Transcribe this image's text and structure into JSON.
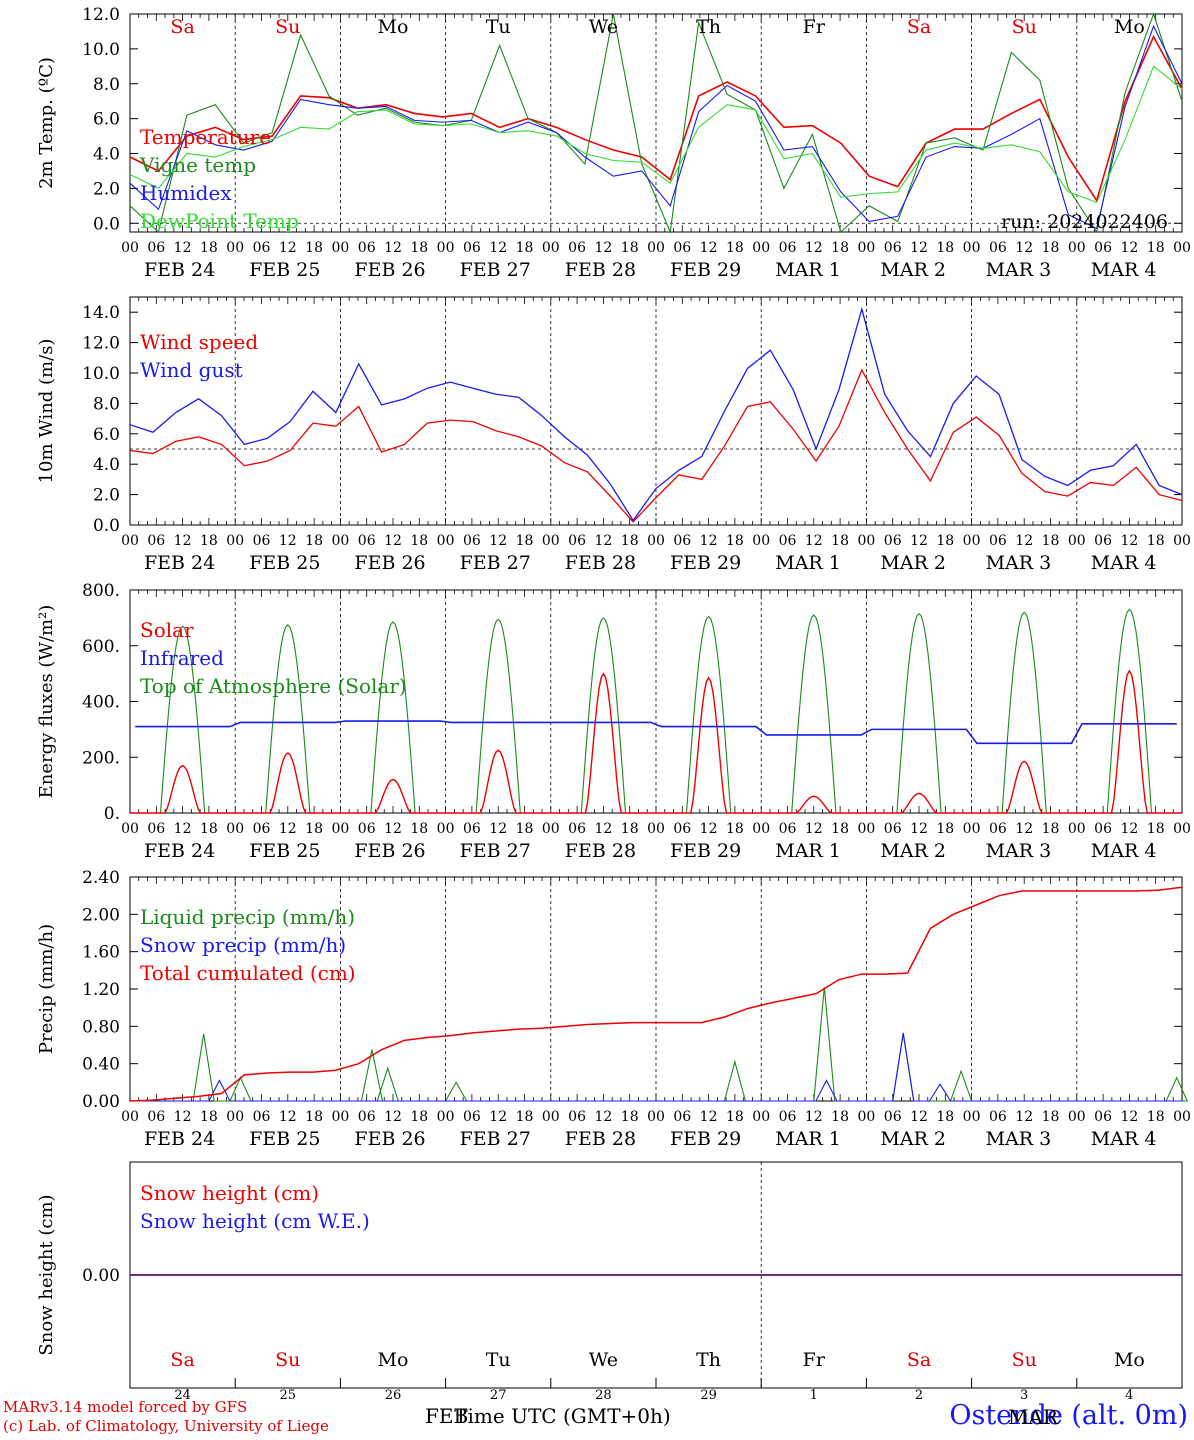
{
  "meta": {
    "run_label": "run: 2024022406",
    "footer_line1": "MARv3.14 model forced by GFS",
    "footer_line2": "(c) Lab. of Climatology, University of Liege",
    "station": "Ostende (alt. 0m)",
    "month_overlap_1": "FEB",
    "month_overlap_2": "MAR",
    "xaxis_label": "Time UTC (GMT+0h)"
  },
  "axis": {
    "hour_ticks": [
      "00",
      "06",
      "12",
      "18"
    ],
    "day_labels": [
      "FEB 24",
      "FEB 25",
      "FEB 26",
      "FEB 27",
      "FEB 28",
      "FEB 29",
      "MAR  1",
      "MAR  2",
      "MAR  3",
      "MAR  4"
    ],
    "weekdays": [
      "Sa",
      "Su",
      "Mo",
      "Tu",
      "We",
      "Th",
      "Fr",
      "Sa",
      "Su",
      "Mo"
    ],
    "weekday_colors": [
      "#e00000",
      "#e00000",
      "#000000",
      "#000000",
      "#000000",
      "#000000",
      "#000000",
      "#e00000",
      "#e00000",
      "#000000"
    ],
    "day_numbers": [
      "24",
      "25",
      "26",
      "27",
      "28",
      "29",
      "1",
      "2",
      "3",
      "4"
    ]
  },
  "colors": {
    "red": "#ee0000",
    "blue": "#1a1aee",
    "dark_green": "#1a8a1a",
    "light_green": "#33dd33",
    "purple": "#7a2a7a"
  },
  "chart_data": [
    {
      "type": "line",
      "ylabel": "2m Temp. (ºC)",
      "ylim": [
        -0.5,
        12.0
      ],
      "yticks": [
        "0.0",
        "2.0",
        "4.0",
        "6.0",
        "8.0",
        "10.0",
        "12.0"
      ],
      "yticks_values": [
        0,
        2,
        4,
        6,
        8,
        10,
        12
      ],
      "x_start": "2024-02-24 00:00",
      "x_step_hours": 6,
      "ref_line": 0,
      "series": [
        {
          "name": "Temperature",
          "color": "#ee0000",
          "values": [
            3.8,
            3.0,
            5.0,
            5.5,
            4.8,
            5.0,
            7.3,
            7.2,
            6.6,
            6.8,
            6.3,
            6.1,
            6.3,
            5.5,
            6.0,
            5.5,
            4.8,
            4.2,
            3.8,
            2.5,
            7.3,
            8.1,
            7.3,
            5.5,
            5.6,
            4.6,
            2.7,
            2.1,
            4.6,
            5.4,
            5.4,
            6.3,
            7.1,
            3.8,
            1.3,
            7.0,
            10.7,
            7.7
          ]
        },
        {
          "name": "Vigne temp",
          "color": "#1a8a1a",
          "values": [
            1.0,
            -0.5,
            6.2,
            6.8,
            4.6,
            5.2,
            10.8,
            7.3,
            6.2,
            6.6,
            5.8,
            5.6,
            5.9,
            10.2,
            6.0,
            5.2,
            3.4,
            12.0,
            3.4,
            -0.5,
            11.5,
            7.4,
            6.5,
            2.0,
            5.1,
            -0.5,
            1.0,
            0.1,
            4.6,
            4.9,
            4.2,
            9.8,
            8.2,
            2.0,
            -0.5,
            7.5,
            12.0,
            7.0
          ]
        },
        {
          "name": "Humidex",
          "color": "#1a1aee",
          "values": [
            2.3,
            0.8,
            5.3,
            4.5,
            4.2,
            4.7,
            7.1,
            6.8,
            6.6,
            6.7,
            5.9,
            5.8,
            5.9,
            5.2,
            5.8,
            5.2,
            3.8,
            2.7,
            3.0,
            1.0,
            6.4,
            7.9,
            7.0,
            4.2,
            4.4,
            1.8,
            0.1,
            0.4,
            3.8,
            4.4,
            4.3,
            5.1,
            6.0,
            0.5,
            -0.3,
            6.7,
            11.3,
            8.0
          ]
        },
        {
          "name": "DewPoint Temp",
          "color": "#33dd33",
          "values": [
            2.8,
            2.0,
            4.0,
            3.8,
            4.4,
            4.8,
            5.5,
            5.4,
            6.4,
            6.5,
            5.7,
            5.6,
            5.7,
            5.2,
            5.3,
            5.0,
            4.0,
            3.6,
            3.5,
            2.3,
            5.5,
            6.8,
            6.5,
            3.7,
            4.0,
            1.5,
            1.7,
            1.8,
            4.2,
            4.6,
            4.3,
            4.5,
            4.1,
            1.8,
            1.2,
            4.8,
            9.0,
            7.7
          ]
        }
      ]
    },
    {
      "type": "line",
      "ylabel": "10m Wind (m/s)",
      "ylim": [
        0,
        15
      ],
      "yticks": [
        "0.0",
        "2.0",
        "4.0",
        "6.0",
        "8.0",
        "10.0",
        "12.0",
        "14.0"
      ],
      "yticks_values": [
        0,
        2,
        4,
        6,
        8,
        10,
        12,
        14
      ],
      "x_start": "2024-02-24 00:00",
      "x_step_hours": 6,
      "ref_line": 5,
      "series": [
        {
          "name": "Wind speed",
          "color": "#ee0000",
          "values": [
            4.9,
            4.7,
            5.5,
            5.8,
            5.3,
            3.9,
            4.2,
            4.9,
            6.7,
            6.5,
            7.8,
            4.8,
            5.3,
            6.7,
            6.9,
            6.8,
            6.2,
            5.8,
            5.2,
            4.1,
            3.5,
            1.9,
            0.2,
            1.8,
            3.3,
            3.0,
            5.2,
            7.8,
            8.1,
            6.3,
            4.2,
            6.5,
            10.2,
            7.4,
            5.0,
            2.9,
            6.1,
            7.1,
            5.9,
            3.4,
            2.2,
            1.9,
            2.8,
            2.6,
            3.8,
            2.0,
            1.6
          ]
        },
        {
          "name": "Wind gust",
          "color": "#1a1aee",
          "values": [
            6.6,
            6.1,
            7.4,
            8.3,
            7.2,
            5.3,
            5.7,
            6.8,
            8.8,
            7.4,
            10.6,
            7.9,
            8.3,
            9.0,
            9.4,
            9.0,
            8.6,
            8.4,
            7.2,
            5.8,
            4.6,
            2.7,
            0.3,
            2.4,
            3.6,
            4.5,
            7.5,
            10.3,
            11.5,
            8.9,
            5.0,
            8.9,
            14.2,
            8.6,
            6.2,
            4.5,
            8.0,
            9.8,
            8.6,
            4.3,
            3.2,
            2.6,
            3.6,
            3.9,
            5.3,
            2.6,
            2.0
          ]
        }
      ]
    },
    {
      "type": "area",
      "ylabel": "Energy fluxes (W/m²)",
      "ylim": [
        0,
        800
      ],
      "yticks": [
        "0.",
        "200.",
        "400.",
        "600.",
        "800."
      ],
      "yticks_values": [
        0,
        200,
        400,
        600,
        800
      ],
      "series": [
        {
          "name": "Solar",
          "color": "#ee0000",
          "values_note_days": "daily peak W/m2",
          "daily_peaks": [
            170,
            215,
            120,
            225,
            500,
            485,
            60,
            70,
            185,
            510
          ]
        },
        {
          "name": "Infrared",
          "color": "#1a1aee",
          "daily_levels": [
            310,
            325,
            330,
            325,
            325,
            310,
            280,
            300,
            250,
            320
          ]
        },
        {
          "name": "Top of Atmosphere (Solar)",
          "color": "#1a8a1a",
          "daily_peaks": [
            670,
            675,
            685,
            695,
            700,
            705,
            710,
            715,
            720,
            730
          ]
        }
      ]
    },
    {
      "type": "line",
      "ylabel": "Precip (mm/h)",
      "ylim": [
        0,
        2.4
      ],
      "yticks": [
        "0.00",
        "0.40",
        "0.80",
        "1.20",
        "1.60",
        "2.00",
        "2.40"
      ],
      "yticks_values": [
        0,
        0.4,
        0.8,
        1.2,
        1.6,
        2.0,
        2.4
      ],
      "series": [
        {
          "name": "Liquid precip (mm/h)",
          "color": "#1a8a1a",
          "spikes": [
            [
              0.7,
              0.72
            ],
            [
              1.05,
              0.25
            ],
            [
              2.3,
              0.55
            ],
            [
              2.45,
              0.35
            ],
            [
              3.1,
              0.2
            ],
            [
              5.75,
              0.42
            ],
            [
              6.6,
              1.22
            ],
            [
              7.35,
              0.72
            ],
            [
              7.9,
              0.32
            ],
            [
              9.95,
              0.25
            ]
          ]
        },
        {
          "name": "Snow precip (mm/h)",
          "color": "#1a1aee",
          "spikes": [
            [
              0.85,
              0.22
            ],
            [
              6.62,
              0.22
            ],
            [
              7.35,
              0.73
            ],
            [
              7.7,
              0.18
            ]
          ]
        },
        {
          "name": "Total cumulated (cm)",
          "color": "#ee0000",
          "values": [
            0.0,
            0.01,
            0.03,
            0.05,
            0.08,
            0.28,
            0.3,
            0.31,
            0.31,
            0.33,
            0.4,
            0.55,
            0.65,
            0.68,
            0.7,
            0.73,
            0.75,
            0.77,
            0.78,
            0.8,
            0.82,
            0.83,
            0.84,
            0.84,
            0.84,
            0.84,
            0.9,
            0.99,
            1.05,
            1.1,
            1.15,
            1.3,
            1.36,
            1.36,
            1.37,
            1.85,
            2.0,
            2.1,
            2.2,
            2.25,
            2.25,
            2.25,
            2.25,
            2.25,
            2.25,
            2.26,
            2.29
          ]
        }
      ]
    },
    {
      "type": "line",
      "ylabel": "Snow height (cm)",
      "ylim": [
        -1,
        1
      ],
      "yticks": [
        "0.00"
      ],
      "yticks_values": [
        0
      ],
      "series": [
        {
          "name": "Snow height (cm)",
          "color": "#ee0000",
          "values": [
            0.0,
            0.0
          ]
        },
        {
          "name": "Snow height (cm W.E.)",
          "color": "#1a1aee",
          "values": [
            0.0,
            0.0
          ]
        }
      ]
    }
  ]
}
